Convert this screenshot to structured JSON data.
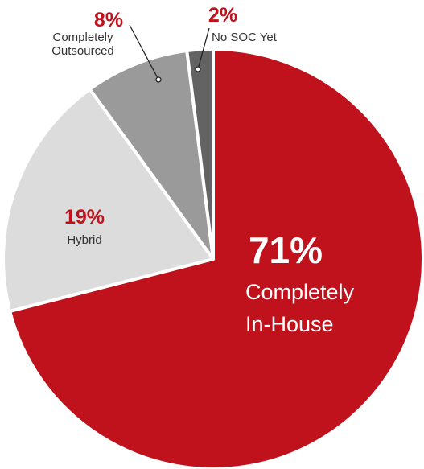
{
  "chart_data": {
    "type": "pie",
    "slices": [
      {
        "label": "Completely In-House",
        "label_lines": [
          "Completely",
          "In-House"
        ],
        "value": 71,
        "value_label": "71%",
        "color": "#c0121c"
      },
      {
        "label": "Hybrid",
        "label_lines": [
          "Hybrid"
        ],
        "value": 19,
        "value_label": "19%",
        "color": "#dcdcdc"
      },
      {
        "label": "Completely Outsourced",
        "label_lines": [
          "Completely",
          "Outsourced"
        ],
        "value": 8,
        "value_label": "8%",
        "color": "#9a9a9a"
      },
      {
        "label": "No SOC Yet",
        "label_lines": [
          "No SOC Yet"
        ],
        "value": 2,
        "value_label": "2%",
        "color": "#636363"
      }
    ],
    "colors": {
      "accent": "#c0121c",
      "label_text": "#333333",
      "inner_label_text": "#ffffff"
    }
  }
}
